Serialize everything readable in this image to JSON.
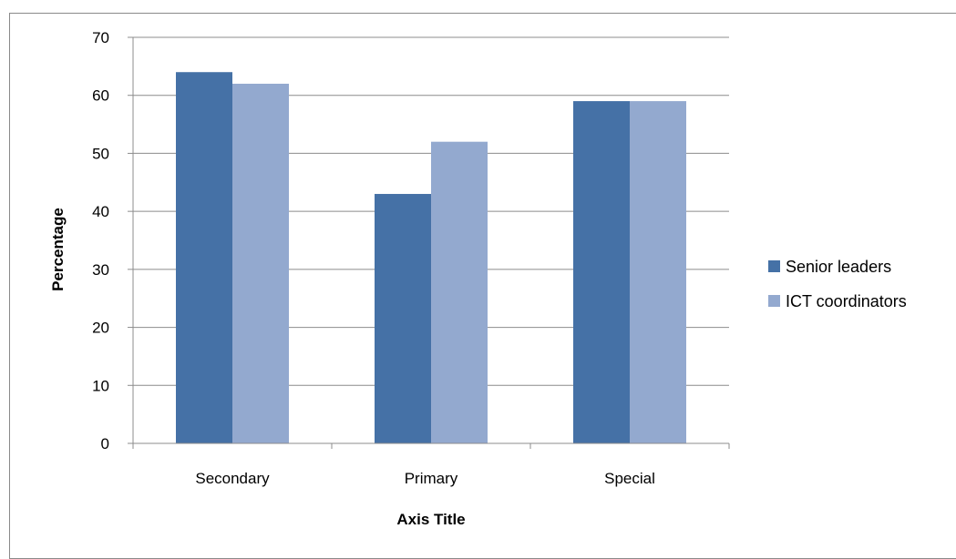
{
  "chart_data": {
    "type": "bar",
    "categories": [
      "Secondary",
      "Primary",
      "Special"
    ],
    "series": [
      {
        "name": "Senior leaders",
        "values": [
          64,
          43,
          59
        ],
        "color": "#4571A6"
      },
      {
        "name": "ICT coordinators",
        "values": [
          62,
          52,
          59
        ],
        "color": "#93A9CF"
      }
    ],
    "xlabel": "Axis Title",
    "ylabel": "Percentage",
    "ylim": [
      0,
      70
    ],
    "yticks": [
      "0",
      "10",
      "20",
      "30",
      "40",
      "50",
      "60",
      "70"
    ],
    "grid": true,
    "legend_position": "right"
  }
}
